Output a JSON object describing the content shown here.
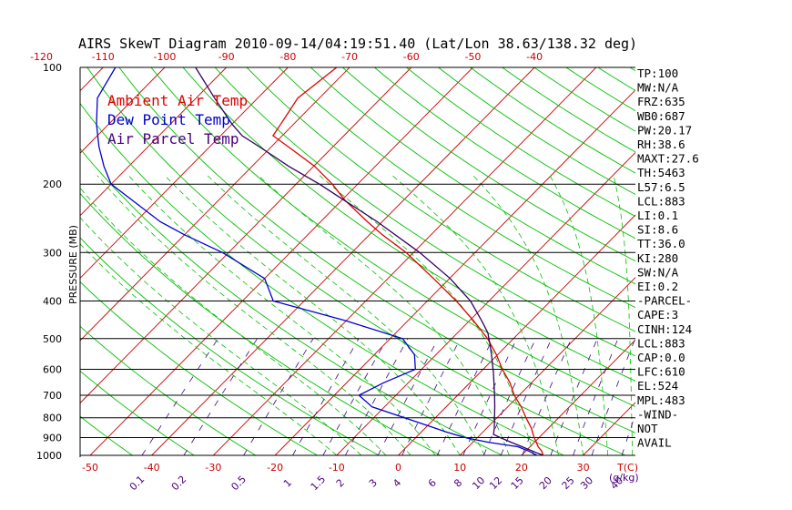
{
  "chart_data": {
    "type": "line",
    "title": "AIRS SkewT Diagram 2010-09-14/04:19:51.40 (Lat/Lon 38.63/138.32 deg)",
    "ylabel": "PRESSURE (MB)",
    "pressure_levels": [
      100,
      200,
      300,
      400,
      500,
      600,
      700,
      800,
      900,
      1000
    ],
    "pressure_labels": [
      "100",
      "200",
      "300",
      "400",
      "500",
      "600",
      "700",
      "800",
      "900",
      "1000"
    ],
    "top_temp_ticks": [
      -120,
      -110,
      -100,
      -90,
      -80,
      -70,
      -60,
      -50,
      -40
    ],
    "top_temp_labels": [
      "-120",
      "-110",
      "-100",
      "-90",
      "-80",
      "-70",
      "-60",
      "-50",
      "-40"
    ],
    "bottom_temp_ticks": [
      -50,
      -40,
      -30,
      -20,
      -10,
      0,
      10,
      20,
      30
    ],
    "bottom_temp_labels": [
      "-50",
      "-40",
      "-30",
      "-20",
      "-10",
      "0",
      "10",
      "20",
      "30"
    ],
    "bottom_axis_unit": "T(C)",
    "mixing_ratio_values": [
      0.1,
      0.2,
      0.5,
      1,
      1.5,
      2,
      3,
      4,
      6,
      8,
      10,
      12,
      15,
      20,
      25,
      30,
      40
    ],
    "mixing_ratio_labels": [
      "0.1",
      "0.2",
      "0.5",
      "1",
      "1.5",
      "2",
      "3",
      "4",
      "6",
      "8",
      "10",
      "12",
      "15",
      "20",
      "25",
      "30",
      "40"
    ],
    "mixing_ratio_unit": "(g/kg)",
    "legend": [
      "Ambient Air Temp",
      "Dew Point Temp",
      "Air Parcel Temp"
    ],
    "series": [
      {
        "name": "Ambient Air Temp",
        "color": "#e00000",
        "pressure": [
          1000,
          975,
          950,
          925,
          900,
          850,
          800,
          750,
          700,
          650,
          600,
          550,
          500,
          450,
          400,
          350,
          300,
          270,
          250,
          220,
          200,
          180,
          160,
          150,
          140,
          120,
          100
        ],
        "temperature": [
          23.5,
          22.6,
          21.3,
          20.3,
          19.2,
          17.2,
          14.7,
          12.2,
          9.2,
          6.5,
          3.1,
          -0.2,
          -4.2,
          -9.3,
          -15.3,
          -22.6,
          -31.2,
          -37.9,
          -42.4,
          -49.5,
          -54.1,
          -59.8,
          -67.3,
          -71.5,
          -72.1,
          -73.5,
          -72.1
        ]
      },
      {
        "name": "Dew Point Temp",
        "color": "#0000d0",
        "pressure": [
          1000,
          975,
          950,
          925,
          900,
          870,
          850,
          800,
          750,
          700,
          650,
          600,
          550,
          500,
          450,
          400,
          350,
          300,
          270,
          250,
          220,
          200,
          180,
          160,
          140,
          120,
          100
        ],
        "temperature": [
          22.5,
          20.5,
          18.0,
          12.5,
          8.0,
          4.0,
          1.5,
          -5.0,
          -12.0,
          -16.0,
          -14.0,
          -11.0,
          -13.5,
          -18.0,
          -30.0,
          -45.0,
          -50.0,
          -61.0,
          -70.0,
          -76.0,
          -84.0,
          -90.0,
          -94.0,
          -98.0,
          -102.0,
          -106.0,
          -108.0
        ]
      },
      {
        "name": "Air Parcel Temp",
        "color": "#300060",
        "pressure": [
          1000,
          975,
          950,
          925,
          900,
          883,
          850,
          800,
          750,
          700,
          650,
          610,
          600,
          550,
          524,
          500,
          483,
          450,
          400,
          350,
          300,
          250,
          200,
          180,
          160,
          150,
          140,
          120,
          100
        ],
        "temperature": [
          23.5,
          21.1,
          18.7,
          16.2,
          13.7,
          12.1,
          11.2,
          9.6,
          7.9,
          6.0,
          3.9,
          2.1,
          1.6,
          -1.0,
          -2.5,
          -4.0,
          -5.1,
          -8.0,
          -13.0,
          -19.9,
          -29.0,
          -40.8,
          -56.2,
          -64.0,
          -72.0,
          -76.5,
          -80.0,
          -87.0,
          -95.0
        ]
      }
    ]
  },
  "stats_panel": [
    "TP:100",
    "MW:N/A",
    "FRZ:635",
    "WB0:687",
    "PW:20.17",
    "RH:38.6",
    "MAXT:27.6",
    "TH:5463",
    "L57:6.5",
    "LCL:883",
    "LI:0.1",
    "SI:8.6",
    "TT:36.0",
    "KI:280",
    "SW:N/A",
    "EI:0.2",
    "-PARCEL-",
    "CAPE:3",
    "CINH:124",
    "LCL:883",
    "CAP:0.0",
    "LFC:610",
    "EL:524",
    "MPL:483",
    "-WIND-",
    "NOT",
    "AVAIL"
  ],
  "colors": {
    "isotherm": "#cc0000",
    "dry_adiabat": "#00c000",
    "moist_adiabat": "#00c000",
    "mixing_ratio": "#3a0a7a",
    "tick_red": "#cc0000",
    "tick_purple": "#4a0080",
    "axes": "#000000"
  }
}
